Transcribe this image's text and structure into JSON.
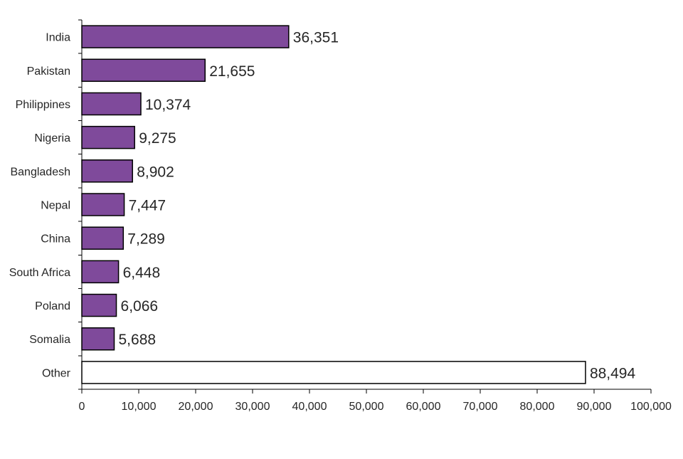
{
  "chart_data": {
    "type": "bar",
    "orientation": "horizontal",
    "title": "",
    "xlabel": "",
    "ylabel": "",
    "categories": [
      "India",
      "Pakistan",
      "Philippines",
      "Nigeria",
      "Bangladesh",
      "Nepal",
      "China",
      "South Africa",
      "Poland",
      "Somalia",
      "Other"
    ],
    "values": [
      36351,
      21655,
      10374,
      9275,
      8902,
      7447,
      7289,
      6448,
      6066,
      5688,
      88494
    ],
    "data_labels": [
      "36,351",
      "21,655",
      "10,374",
      "9,275",
      "8,902",
      "7,447",
      "7,289",
      "6,448",
      "6,066",
      "5,688",
      "88,494"
    ],
    "xlim": [
      0,
      100000
    ],
    "x_ticks": [
      0,
      10000,
      20000,
      30000,
      40000,
      50000,
      60000,
      70000,
      80000,
      90000,
      100000
    ],
    "x_tick_labels": [
      "0",
      "10,000",
      "20,000",
      "30,000",
      "40,000",
      "50,000",
      "60,000",
      "70,000",
      "80,000",
      "90,000",
      "100,000"
    ],
    "grid": false,
    "legend": "none",
    "colors": {
      "bar_fill": "#7f4a9b",
      "other_fill": "#ffffff",
      "bar_stroke": "#000000",
      "text": "#262626"
    }
  }
}
